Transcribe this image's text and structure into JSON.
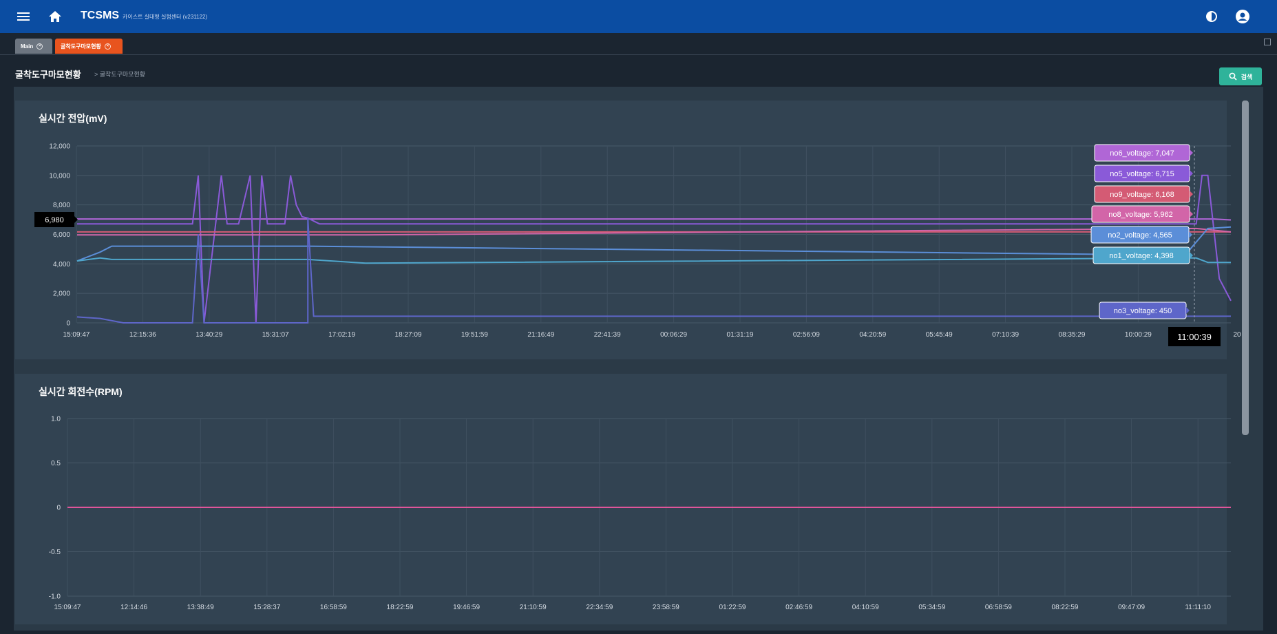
{
  "app": {
    "name": "TCSMS",
    "subtitle": "카이스트 실대형 실험센터 (v231122)"
  },
  "icons": {
    "menu": "menu-icon",
    "home": "home-icon",
    "theme": "brightness-icon",
    "user": "account-icon",
    "search": "search-icon",
    "window": "window-icon"
  },
  "tabs": [
    {
      "label": "Main",
      "color": "#6c7580"
    },
    {
      "label": "굴착도구마모현황",
      "color": "#e8541e"
    }
  ],
  "page": {
    "title": "굴착도구마모현황",
    "breadcrumb_sep": ">",
    "breadcrumb": "굴착도구마모현황",
    "search_label": "검색"
  },
  "charts": {
    "voltage": {
      "title": "실시간 전압(mV)",
      "crosshair_y_label": "6,980",
      "crosshair_x_label": "11:00:39",
      "last_tick_fragment": "20",
      "tooltips": [
        {
          "text": "no6_voltage: 7,047",
          "color": "#b066d6"
        },
        {
          "text": "no5_voltage: 6,715",
          "color": "#8a5ad8"
        },
        {
          "text": "no9_voltage: 6,168",
          "color": "#d45b74"
        },
        {
          "text": "no8_voltage: 5,962",
          "color": "#d265a8"
        },
        {
          "text": "no2_voltage: 4,565",
          "color": "#5b8ed8"
        },
        {
          "text": "no1_voltage: 4,398",
          "color": "#4fa6cc"
        },
        {
          "text": "no3_voltage: 450",
          "color": "#5e66c9"
        }
      ]
    },
    "rpm": {
      "title": "실시간 회전수(RPM)"
    }
  },
  "chart_data": [
    {
      "type": "line",
      "title": "실시간 전압(mV)",
      "ylim": [
        0,
        12000
      ],
      "y_ticks": [
        "12,000",
        "10,000",
        "8,000",
        "6,000",
        "4,000",
        "2,000",
        "0"
      ],
      "x_ticks": [
        "15:09:47",
        "12:15:36",
        "13:40:29",
        "15:31:07",
        "17:02:19",
        "18:27:09",
        "19:51:59",
        "21:16:49",
        "22:41:39",
        "00:06:29",
        "01:31:19",
        "02:56:09",
        "04:20:59",
        "05:45:49",
        "07:10:39",
        "08:35:29",
        "10:00:29"
      ],
      "series": [
        {
          "name": "no6_voltage",
          "color": "#b066d6",
          "x": [
            0,
            0.03,
            0.2,
            0.97,
            0.985,
            1
          ],
          "values": [
            7047,
            7047,
            7047,
            7047,
            7047,
            6980
          ]
        },
        {
          "name": "no5_voltage",
          "color": "#8a5ad8",
          "x": [
            0,
            0.1,
            0.105,
            0.11,
            0.125,
            0.13,
            0.14,
            0.15,
            0.155,
            0.16,
            0.165,
            0.18,
            0.185,
            0.19,
            0.195,
            0.2,
            0.21,
            0.97,
            0.975,
            0.98,
            0.99,
            1
          ],
          "values": [
            6715,
            6715,
            10000,
            0,
            10000,
            6715,
            6715,
            10000,
            0,
            10000,
            6715,
            6715,
            10000,
            8000,
            7200,
            7100,
            6715,
            6715,
            10000,
            10000,
            3000,
            1500
          ]
        },
        {
          "name": "no9_voltage",
          "color": "#d45b74",
          "x": [
            0,
            0.25,
            0.97,
            1
          ],
          "values": [
            6168,
            6168,
            6168,
            6168
          ]
        },
        {
          "name": "no8_voltage",
          "color": "#d265a8",
          "x": [
            0,
            0.25,
            0.97,
            1
          ],
          "values": [
            5962,
            5962,
            6400,
            6168
          ]
        },
        {
          "name": "no2_voltage",
          "color": "#5b8ed8",
          "x": [
            0,
            0.02,
            0.03,
            0.2,
            0.95,
            0.96,
            0.98,
            1
          ],
          "values": [
            4200,
            4800,
            5200,
            5200,
            4600,
            4565,
            6400,
            6500
          ]
        },
        {
          "name": "no1_voltage",
          "color": "#4fa6cc",
          "x": [
            0,
            0.02,
            0.03,
            0.04,
            0.2,
            0.25,
            0.96,
            0.97,
            0.98,
            1
          ],
          "values": [
            4200,
            4400,
            4300,
            4300,
            4300,
            4050,
            4398,
            4398,
            4100,
            4100
          ]
        },
        {
          "name": "no3_voltage",
          "color": "#5e66c9",
          "x": [
            0,
            0.02,
            0.04,
            0.1,
            0.105,
            0.11,
            0.2,
            0.2,
            0.205,
            1
          ],
          "values": [
            400,
            300,
            0,
            0,
            6000,
            0,
            0,
            7100,
            450,
            450
          ]
        }
      ]
    },
    {
      "type": "line",
      "title": "실시간 회전수(RPM)",
      "ylim": [
        -1.0,
        1.0
      ],
      "y_ticks": [
        "1.0",
        "0.5",
        "0",
        "-0.5",
        "-1.0"
      ],
      "x_ticks": [
        "15:09:47",
        "12:14:46",
        "13:38:49",
        "15:28:37",
        "16:58:59",
        "18:22:59",
        "19:46:59",
        "21:10:59",
        "22:34:59",
        "23:58:59",
        "01:22:59",
        "02:46:59",
        "04:10:59",
        "05:34:59",
        "06:58:59",
        "08:22:59",
        "09:47:09",
        "11:11:10"
      ],
      "series": [
        {
          "name": "",
          "color": "#e0559a",
          "x": [
            0,
            1
          ],
          "values": [
            0,
            0
          ]
        }
      ]
    }
  ]
}
